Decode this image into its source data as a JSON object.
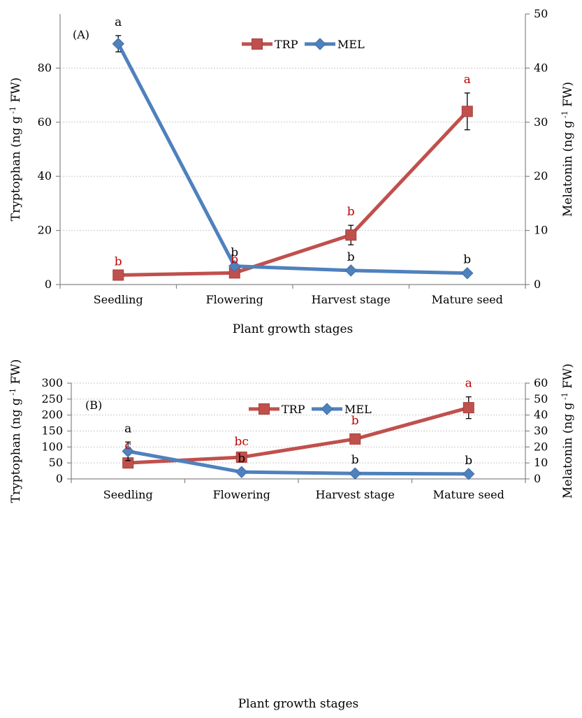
{
  "chart_data": [
    {
      "type": "line",
      "panel_label": "(A)",
      "categories": [
        "Seedling",
        "Flowering",
        "Harvest stage",
        "Mature seed"
      ],
      "xlabel": "Plant growth stages",
      "ylabel_left": {
        "main": "Tryptophan (ng g",
        "sup": "-1",
        "end": " FW)"
      },
      "ylabel_right": {
        "main": "Melatonin (ng g",
        "sup": "-1",
        "end": " FW)"
      },
      "left_axis": {
        "ylim": [
          0,
          100
        ],
        "ticks": [
          0,
          20,
          40,
          60,
          80
        ]
      },
      "right_axis": {
        "ylim": [
          0,
          50
        ],
        "ticks": [
          0,
          10,
          20,
          30,
          40,
          50
        ]
      },
      "grid": true,
      "legend_position": "top-center",
      "series": [
        {
          "name": "TRP",
          "axis": "left",
          "color": "#c0504d",
          "marker": "square",
          "values": [
            3.5,
            4.3,
            18.3,
            64.0
          ],
          "error": [
            0,
            0,
            3.6,
            6.8
          ],
          "letters": [
            "b",
            "b",
            "b",
            "a"
          ],
          "letter_color": "#c00000"
        },
        {
          "name": "MEL",
          "axis": "right",
          "color": "#4f81bd",
          "marker": "diamond",
          "values": [
            44.5,
            3.4,
            2.6,
            2.1
          ],
          "error": [
            1.5,
            0,
            0,
            0
          ],
          "letters": [
            "a",
            "b",
            "b",
            "b"
          ],
          "letter_color": "#000000"
        }
      ]
    },
    {
      "type": "line",
      "panel_label": "(B)",
      "categories": [
        "Seedling",
        "Flowering",
        "Harvest stage",
        "Mature seed"
      ],
      "xlabel": "Plant growth stages",
      "ylabel_left": {
        "main": "Tryptophan (ng g",
        "sup": "-1",
        "end": " FW)"
      },
      "ylabel_right": {
        "main": "Melatonin (ng g",
        "sup": "-1",
        "end": " FW)"
      },
      "left_axis": {
        "ylim": [
          0,
          300
        ],
        "ticks": [
          0,
          50,
          100,
          150,
          200,
          250,
          300
        ]
      },
      "right_axis": {
        "ylim": [
          0,
          60
        ],
        "ticks": [
          0,
          10,
          20,
          30,
          40,
          50,
          60
        ]
      },
      "grid": true,
      "legend_position": "top-center",
      "series": [
        {
          "name": "TRP",
          "axis": "left",
          "color": "#c0504d",
          "marker": "square",
          "values": [
            50,
            68,
            125,
            223
          ],
          "error": [
            12,
            7,
            15,
            34
          ],
          "letters": [
            "c",
            "bc",
            "b",
            "a"
          ],
          "letter_color": "#c00000"
        },
        {
          "name": "MEL",
          "axis": "right",
          "color": "#4f81bd",
          "marker": "diamond",
          "values": [
            17.3,
            4.3,
            3.4,
            3.1
          ],
          "error": [
            5.8,
            0,
            0,
            0
          ],
          "letters": [
            "a",
            "b",
            "b",
            "b"
          ],
          "letter_color": "#000000"
        }
      ]
    }
  ]
}
